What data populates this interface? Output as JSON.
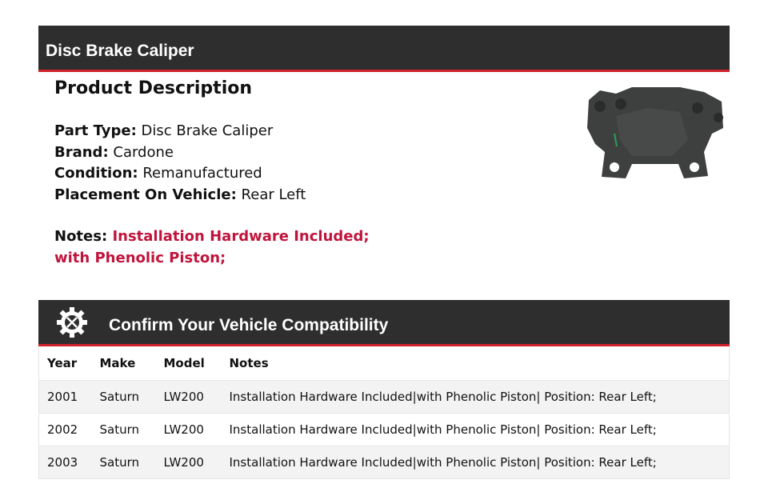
{
  "header": {
    "title": "Disc Brake Caliper"
  },
  "description": {
    "heading": "Product Description",
    "specs": [
      {
        "label": "Part Type:",
        "value": "Disc Brake Caliper"
      },
      {
        "label": "Brand:",
        "value": "Cardone"
      },
      {
        "label": "Condition:",
        "value": "Remanufactured"
      },
      {
        "label": "Placement On Vehicle:",
        "value": "Rear Left"
      }
    ],
    "notes_label": "Notes:",
    "notes_line1": "Installation Hardware Included;",
    "notes_line2": "with Phenolic Piston;"
  },
  "compat": {
    "title": "Confirm Your Vehicle Compatibility",
    "icon": "gear-wrench-icon",
    "columns": [
      "Year",
      "Make",
      "Model",
      "Notes"
    ],
    "rows": [
      [
        "2001",
        "Saturn",
        "LW200",
        "Installation Hardware Included|with Phenolic Piston| Position: Rear Left;"
      ],
      [
        "2002",
        "Saturn",
        "LW200",
        "Installation Hardware Included|with Phenolic Piston| Position: Rear Left;"
      ],
      [
        "2003",
        "Saturn",
        "LW200",
        "Installation Hardware Included|with Phenolic Piston| Position: Rear Left;"
      ]
    ]
  },
  "colors": {
    "header_bg": "#2f2e2f",
    "accent_red": "#d0222b",
    "notes_red": "#c0143c"
  }
}
